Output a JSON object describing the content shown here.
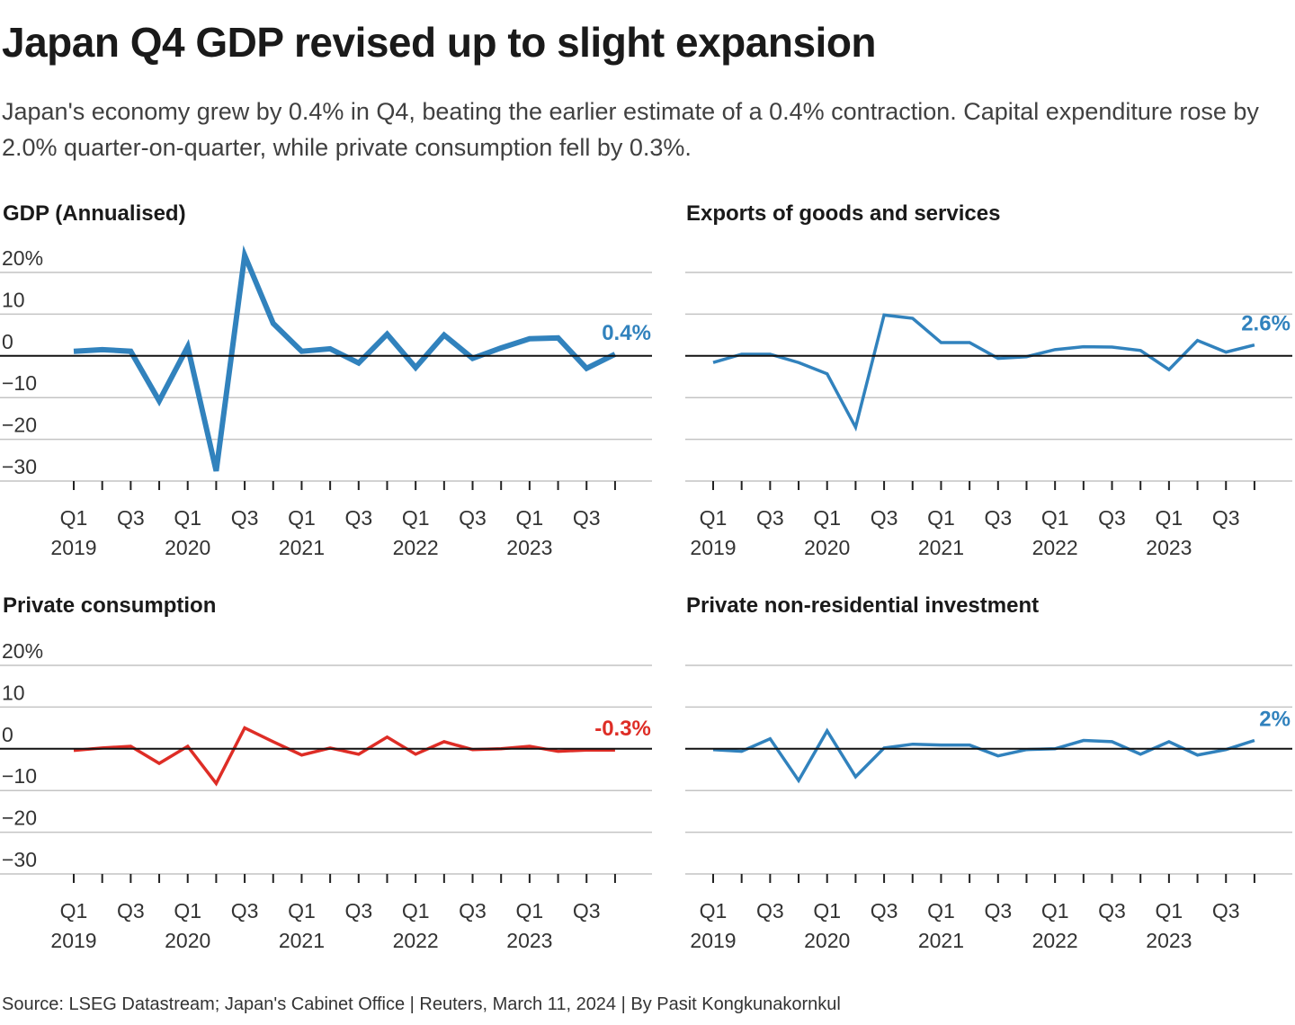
{
  "title": "Japan Q4 GDP revised up to slight expansion",
  "subtitle": "Japan's economy grew by 0.4% in Q4, beating the earlier estimate of a 0.4% contraction. Capital expenditure rose by 2.0% quarter-on-quarter, while private consumption fell by 0.3%.",
  "footer": "Source: LSEG Datastream; Japan's Cabinet Office | Reuters, March 11, 2024 | By Pasit Kongkunakornkul",
  "chart_data": [
    {
      "type": "line",
      "title": "GDP (Annualised)",
      "color": "#3182bd",
      "ylim": [
        -30,
        20
      ],
      "yticks": [
        "20%",
        "10",
        "0",
        "−10",
        "−20",
        "−30"
      ],
      "show_y_labels": true,
      "end_label": "0.4%",
      "x_tick_labels": [
        [
          "Q1",
          "2019"
        ],
        [
          "Q3",
          ""
        ],
        [
          "Q1",
          "2020"
        ],
        [
          "Q3",
          ""
        ],
        [
          "Q1",
          "2021"
        ],
        [
          "Q3",
          ""
        ],
        [
          "Q1",
          "2022"
        ],
        [
          "Q3",
          ""
        ],
        [
          "Q1",
          "2023"
        ],
        [
          "Q3",
          ""
        ]
      ],
      "x": [
        "2019 Q1",
        "2019 Q2",
        "2019 Q3",
        "2019 Q4",
        "2020 Q1",
        "2020 Q2",
        "2020 Q3",
        "2020 Q4",
        "2021 Q1",
        "2021 Q2",
        "2021 Q3",
        "2021 Q4",
        "2022 Q1",
        "2022 Q2",
        "2022 Q3",
        "2022 Q4",
        "2023 Q1",
        "2023 Q2",
        "2023 Q3",
        "2023 Q4"
      ],
      "values": [
        1.1,
        1.5,
        1.1,
        -10.8,
        2.2,
        -27.6,
        24.1,
        7.8,
        1.1,
        1.7,
        -1.7,
        5.2,
        -2.8,
        5.0,
        -0.6,
        1.9,
        4.1,
        4.3,
        -3.0,
        0.4
      ]
    },
    {
      "type": "line",
      "title": "Exports of goods and services",
      "color": "#3182bd",
      "ylim": [
        -30,
        20
      ],
      "yticks": [],
      "show_y_labels": false,
      "end_label": "2.6%",
      "x_tick_labels": [
        [
          "Q1",
          "2019"
        ],
        [
          "Q3",
          ""
        ],
        [
          "Q1",
          "2020"
        ],
        [
          "Q3",
          ""
        ],
        [
          "Q1",
          "2021"
        ],
        [
          "Q3",
          ""
        ],
        [
          "Q1",
          "2022"
        ],
        [
          "Q3",
          ""
        ],
        [
          "Q1",
          "2023"
        ],
        [
          "Q3",
          ""
        ]
      ],
      "x": [
        "2019 Q1",
        "2019 Q2",
        "2019 Q3",
        "2019 Q4",
        "2020 Q1",
        "2020 Q2",
        "2020 Q3",
        "2020 Q4",
        "2021 Q1",
        "2021 Q2",
        "2021 Q3",
        "2021 Q4",
        "2022 Q1",
        "2022 Q2",
        "2022 Q3",
        "2022 Q4",
        "2023 Q1",
        "2023 Q2",
        "2023 Q3",
        "2023 Q4"
      ],
      "values": [
        -1.6,
        0.4,
        0.4,
        -1.6,
        -4.3,
        -17.1,
        9.8,
        9.0,
        3.2,
        3.2,
        -0.6,
        -0.2,
        1.5,
        2.2,
        2.1,
        1.3,
        -3.3,
        3.7,
        0.9,
        2.6
      ]
    },
    {
      "type": "line",
      "title": "Private consumption",
      "color": "#de2d26",
      "ylim": [
        -30,
        20
      ],
      "yticks": [
        "20%",
        "10",
        "0",
        "−10",
        "−20",
        "−30"
      ],
      "show_y_labels": true,
      "end_label": "-0.3%",
      "x_tick_labels": [
        [
          "Q1",
          "2019"
        ],
        [
          "Q3",
          ""
        ],
        [
          "Q1",
          "2020"
        ],
        [
          "Q3",
          ""
        ],
        [
          "Q1",
          "2021"
        ],
        [
          "Q3",
          ""
        ],
        [
          "Q1",
          "2022"
        ],
        [
          "Q3",
          ""
        ],
        [
          "Q1",
          "2023"
        ],
        [
          "Q3",
          ""
        ]
      ],
      "x": [
        "2019 Q1",
        "2019 Q2",
        "2019 Q3",
        "2019 Q4",
        "2020 Q1",
        "2020 Q2",
        "2020 Q3",
        "2020 Q4",
        "2021 Q1",
        "2021 Q2",
        "2021 Q3",
        "2021 Q4",
        "2022 Q1",
        "2022 Q2",
        "2022 Q3",
        "2022 Q4",
        "2023 Q1",
        "2023 Q2",
        "2023 Q3",
        "2023 Q4"
      ],
      "values": [
        -0.4,
        0.2,
        0.6,
        -3.5,
        0.6,
        -8.3,
        5.0,
        1.7,
        -1.5,
        0.2,
        -1.3,
        2.8,
        -1.3,
        1.7,
        -0.2,
        0.0,
        0.6,
        -0.6,
        -0.3,
        -0.3
      ]
    },
    {
      "type": "line",
      "title": "Private non-residential investment",
      "color": "#3182bd",
      "ylim": [
        -30,
        20
      ],
      "yticks": [],
      "show_y_labels": false,
      "end_label": "2%",
      "x_tick_labels": [
        [
          "Q1",
          "2019"
        ],
        [
          "Q3",
          ""
        ],
        [
          "Q1",
          "2020"
        ],
        [
          "Q3",
          ""
        ],
        [
          "Q1",
          "2021"
        ],
        [
          "Q3",
          ""
        ],
        [
          "Q1",
          "2022"
        ],
        [
          "Q3",
          ""
        ],
        [
          "Q1",
          "2023"
        ],
        [
          "Q3",
          ""
        ]
      ],
      "x": [
        "2019 Q1",
        "2019 Q2",
        "2019 Q3",
        "2019 Q4",
        "2020 Q1",
        "2020 Q2",
        "2020 Q3",
        "2020 Q4",
        "2021 Q1",
        "2021 Q2",
        "2021 Q3",
        "2021 Q4",
        "2022 Q1",
        "2022 Q2",
        "2022 Q3",
        "2022 Q4",
        "2023 Q1",
        "2023 Q2",
        "2023 Q3",
        "2023 Q4"
      ],
      "values": [
        -0.2,
        -0.6,
        2.4,
        -7.6,
        4.3,
        -6.7,
        0.2,
        1.1,
        0.9,
        0.9,
        -1.7,
        -0.2,
        0.0,
        2.0,
        1.7,
        -1.3,
        1.7,
        -1.5,
        -0.2,
        2.0
      ]
    }
  ]
}
